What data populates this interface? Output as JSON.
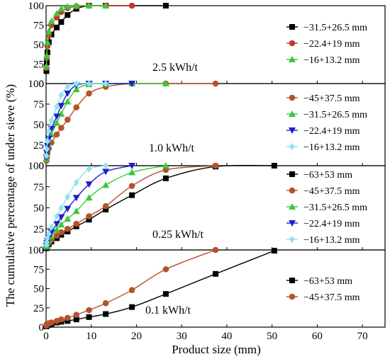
{
  "figure": {
    "ylabel": "The cumulative percentage of under sieve (%)",
    "xlabel": "Product size (mm)"
  },
  "chart_data": [
    {
      "type": "line",
      "annotation": "2.5 kWh/t",
      "xlim": [
        0,
        75
      ],
      "ylim": [
        0,
        100
      ],
      "y_ticks": [
        "0",
        "25",
        "50",
        "75",
        "100"
      ],
      "series": [
        {
          "name": "−31.5+26.5 mm",
          "color": "#000000",
          "marker": "square",
          "x": [
            0.075,
            0.15,
            0.3,
            0.6,
            1.18,
            2.36,
            3.35,
            4.75,
            6.7,
            9.5,
            13.2,
            26.5
          ],
          "y": [
            16,
            27,
            40,
            53,
            63,
            72,
            79,
            88,
            96,
            100,
            100,
            100
          ]
        },
        {
          "name": "−22.4+19 mm",
          "color": "#c0392b",
          "marker": "circle",
          "x": [
            0.075,
            0.15,
            0.3,
            0.6,
            1.18,
            2.36,
            3.35,
            4.75,
            6.7,
            9.5,
            13.2,
            19
          ],
          "y": [
            20,
            33,
            48,
            62,
            75,
            85,
            92,
            97,
            99,
            100,
            100,
            100
          ]
        },
        {
          "name": "−16+13.2 mm",
          "color": "#3cc83c",
          "marker": "triangle-up",
          "x": [
            0.075,
            0.15,
            0.3,
            0.6,
            1.18,
            2.36,
            3.35,
            4.75,
            6.7,
            9.5,
            13.2
          ],
          "y": [
            22,
            36,
            53,
            67,
            80,
            90,
            96,
            99,
            100,
            100,
            100
          ]
        }
      ]
    },
    {
      "type": "line",
      "annotation": "1.0 kWh/t",
      "xlim": [
        0,
        75
      ],
      "ylim": [
        0,
        100
      ],
      "y_ticks": [
        "0",
        "25",
        "50",
        "75",
        "100"
      ],
      "series": [
        {
          "name": "−45+37.5 mm",
          "color": "#b5532a",
          "marker": "circle",
          "x": [
            0.075,
            0.15,
            0.3,
            0.6,
            1.18,
            2.36,
            3.35,
            4.75,
            6.7,
            9.5,
            13.2,
            19,
            26.5,
            37.5
          ],
          "y": [
            6,
            10,
            15,
            21,
            28,
            38,
            46,
            56,
            71,
            88,
            96,
            100,
            100,
            100
          ]
        },
        {
          "name": "−31.5+26.5 mm",
          "color": "#3cc83c",
          "marker": "triangle-up",
          "x": [
            0.075,
            0.15,
            0.3,
            0.6,
            1.18,
            2.36,
            3.35,
            4.75,
            6.7,
            9.5,
            13.2,
            19,
            26.5
          ],
          "y": [
            8,
            13,
            20,
            28,
            38,
            52,
            63,
            78,
            93,
            99,
            100,
            100,
            100
          ]
        },
        {
          "name": "−22.4+19 mm",
          "color": "#1f1fd0",
          "marker": "triangle-down",
          "x": [
            0.075,
            0.15,
            0.3,
            0.6,
            1.18,
            2.36,
            3.35,
            4.75,
            6.7,
            9.5,
            13.2,
            19
          ],
          "y": [
            10,
            16,
            24,
            33,
            45,
            60,
            73,
            88,
            98,
            100,
            100,
            100
          ]
        },
        {
          "name": "−16+13.2 mm",
          "color": "#8fe3f0",
          "marker": "diamond",
          "x": [
            0.075,
            0.15,
            0.3,
            0.6,
            1.18,
            2.36,
            3.35,
            4.75,
            6.7,
            9.5,
            13.2
          ],
          "y": [
            12,
            20,
            30,
            42,
            55,
            72,
            86,
            96,
            100,
            100,
            100
          ]
        }
      ]
    },
    {
      "type": "line",
      "annotation": "0.25 kWh/t",
      "xlim": [
        0,
        75
      ],
      "ylim": [
        0,
        100
      ],
      "y_ticks": [
        "0",
        "25",
        "50",
        "75",
        "100"
      ],
      "series": [
        {
          "name": "−63+53 mm",
          "color": "#000000",
          "marker": "square",
          "x": [
            0.075,
            0.15,
            0.3,
            0.6,
            1.18,
            2.36,
            3.35,
            4.75,
            6.7,
            9.5,
            13.2,
            19,
            26.5,
            37.5,
            50.5
          ],
          "y": [
            2,
            3,
            5,
            7,
            10,
            14,
            18,
            22,
            28,
            36,
            48,
            65,
            85,
            99,
            100
          ]
        },
        {
          "name": "−45+37.5 mm",
          "color": "#b5532a",
          "marker": "circle",
          "x": [
            0.075,
            0.15,
            0.3,
            0.6,
            1.18,
            2.36,
            3.35,
            4.75,
            6.7,
            9.5,
            13.2,
            19,
            26.5,
            37.5
          ],
          "y": [
            3,
            5,
            7,
            9,
            12,
            17,
            21,
            25,
            31,
            40,
            52,
            76,
            95,
            100
          ]
        },
        {
          "name": "−31.5+26.5 mm",
          "color": "#3cc83c",
          "marker": "triangle-up",
          "x": [
            0.075,
            0.15,
            0.3,
            0.6,
            1.18,
            2.36,
            3.35,
            4.75,
            6.7,
            9.5,
            13.2,
            19,
            26.5
          ],
          "y": [
            4,
            6,
            9,
            12,
            16,
            24,
            30,
            37,
            46,
            62,
            77,
            92,
            100
          ]
        },
        {
          "name": "−22.4+19 mm",
          "color": "#1f1fd0",
          "marker": "triangle-down",
          "x": [
            0.075,
            0.15,
            0.3,
            0.6,
            1.18,
            2.36,
            3.35,
            4.75,
            6.7,
            9.5,
            13.2,
            19
          ],
          "y": [
            5,
            8,
            11,
            15,
            21,
            31,
            39,
            49,
            62,
            78,
            93,
            100
          ]
        },
        {
          "name": "−16+13.2 mm",
          "color": "#8fe3f0",
          "marker": "diamond",
          "x": [
            0.075,
            0.15,
            0.3,
            0.6,
            1.18,
            2.36,
            3.35,
            4.75,
            6.7,
            9.5,
            13.2
          ],
          "y": [
            6,
            9,
            14,
            19,
            27,
            40,
            50,
            63,
            80,
            96,
            100
          ]
        }
      ]
    },
    {
      "type": "line",
      "annotation": "0.1 kWh/t",
      "xlim": [
        0,
        75
      ],
      "ylim": [
        0,
        100
      ],
      "x_ticks": [
        "0",
        "10",
        "20",
        "30",
        "40",
        "50",
        "60",
        "70"
      ],
      "y_ticks": [
        "0",
        "25",
        "50",
        "75",
        "100"
      ],
      "series": [
        {
          "name": "−63+53 mm",
          "color": "#000000",
          "marker": "square",
          "x": [
            0.075,
            0.15,
            0.3,
            0.6,
            1.18,
            2.36,
            3.35,
            4.75,
            6.7,
            9.5,
            13.2,
            19,
            26.5,
            37.5,
            50.5
          ],
          "y": [
            1,
            2,
            3,
            3,
            4,
            6,
            7,
            8,
            10,
            13,
            17,
            26,
            43,
            69,
            99
          ]
        },
        {
          "name": "−45+37.5 mm",
          "color": "#b5532a",
          "marker": "circle",
          "x": [
            0.075,
            0.15,
            0.3,
            0.6,
            1.18,
            2.36,
            3.35,
            4.75,
            6.7,
            9.5,
            13.2,
            19,
            26.5,
            37.5
          ],
          "y": [
            2,
            3,
            4,
            5,
            6,
            8,
            10,
            12,
            16,
            22,
            31,
            48,
            75,
            100
          ]
        }
      ]
    }
  ]
}
